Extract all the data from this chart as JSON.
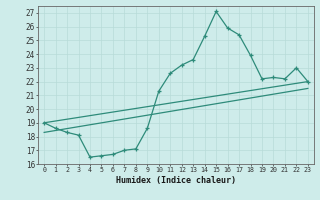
{
  "xlabel": "Humidex (Indice chaleur)",
  "xlim": [
    -0.5,
    23.5
  ],
  "ylim": [
    16,
    27.5
  ],
  "yticks": [
    16,
    17,
    18,
    19,
    20,
    21,
    22,
    23,
    24,
    25,
    26,
    27
  ],
  "xticks": [
    0,
    1,
    2,
    3,
    4,
    5,
    6,
    7,
    8,
    9,
    10,
    11,
    12,
    13,
    14,
    15,
    16,
    17,
    18,
    19,
    20,
    21,
    22,
    23
  ],
  "xtick_labels": [
    "0",
    "1",
    "2",
    "3",
    "4",
    "5",
    "6",
    "7",
    "8",
    "9",
    "10",
    "11",
    "12",
    "13",
    "14",
    "15",
    "16",
    "17",
    "18",
    "19",
    "20",
    "21",
    "22",
    "23"
  ],
  "line_color": "#2e8b7a",
  "bg_color": "#ceecea",
  "grid_color": "#b8dbd8",
  "line1_x": [
    0,
    1,
    2,
    3,
    4,
    5,
    6,
    7,
    8,
    9,
    10,
    11,
    12,
    13,
    14,
    15,
    16,
    17,
    18,
    19,
    20,
    21,
    22,
    23
  ],
  "line1_y": [
    19.0,
    18.6,
    18.3,
    18.1,
    16.5,
    16.6,
    16.7,
    17.0,
    17.1,
    18.6,
    21.3,
    22.6,
    23.2,
    23.6,
    25.3,
    27.1,
    25.9,
    25.4,
    23.9,
    22.2,
    22.3,
    22.2,
    23.0,
    22.0
  ],
  "line2_x": [
    0,
    23
  ],
  "line2_y": [
    19.0,
    22.0
  ],
  "line3_x": [
    0,
    23
  ],
  "line3_y": [
    18.3,
    21.5
  ]
}
